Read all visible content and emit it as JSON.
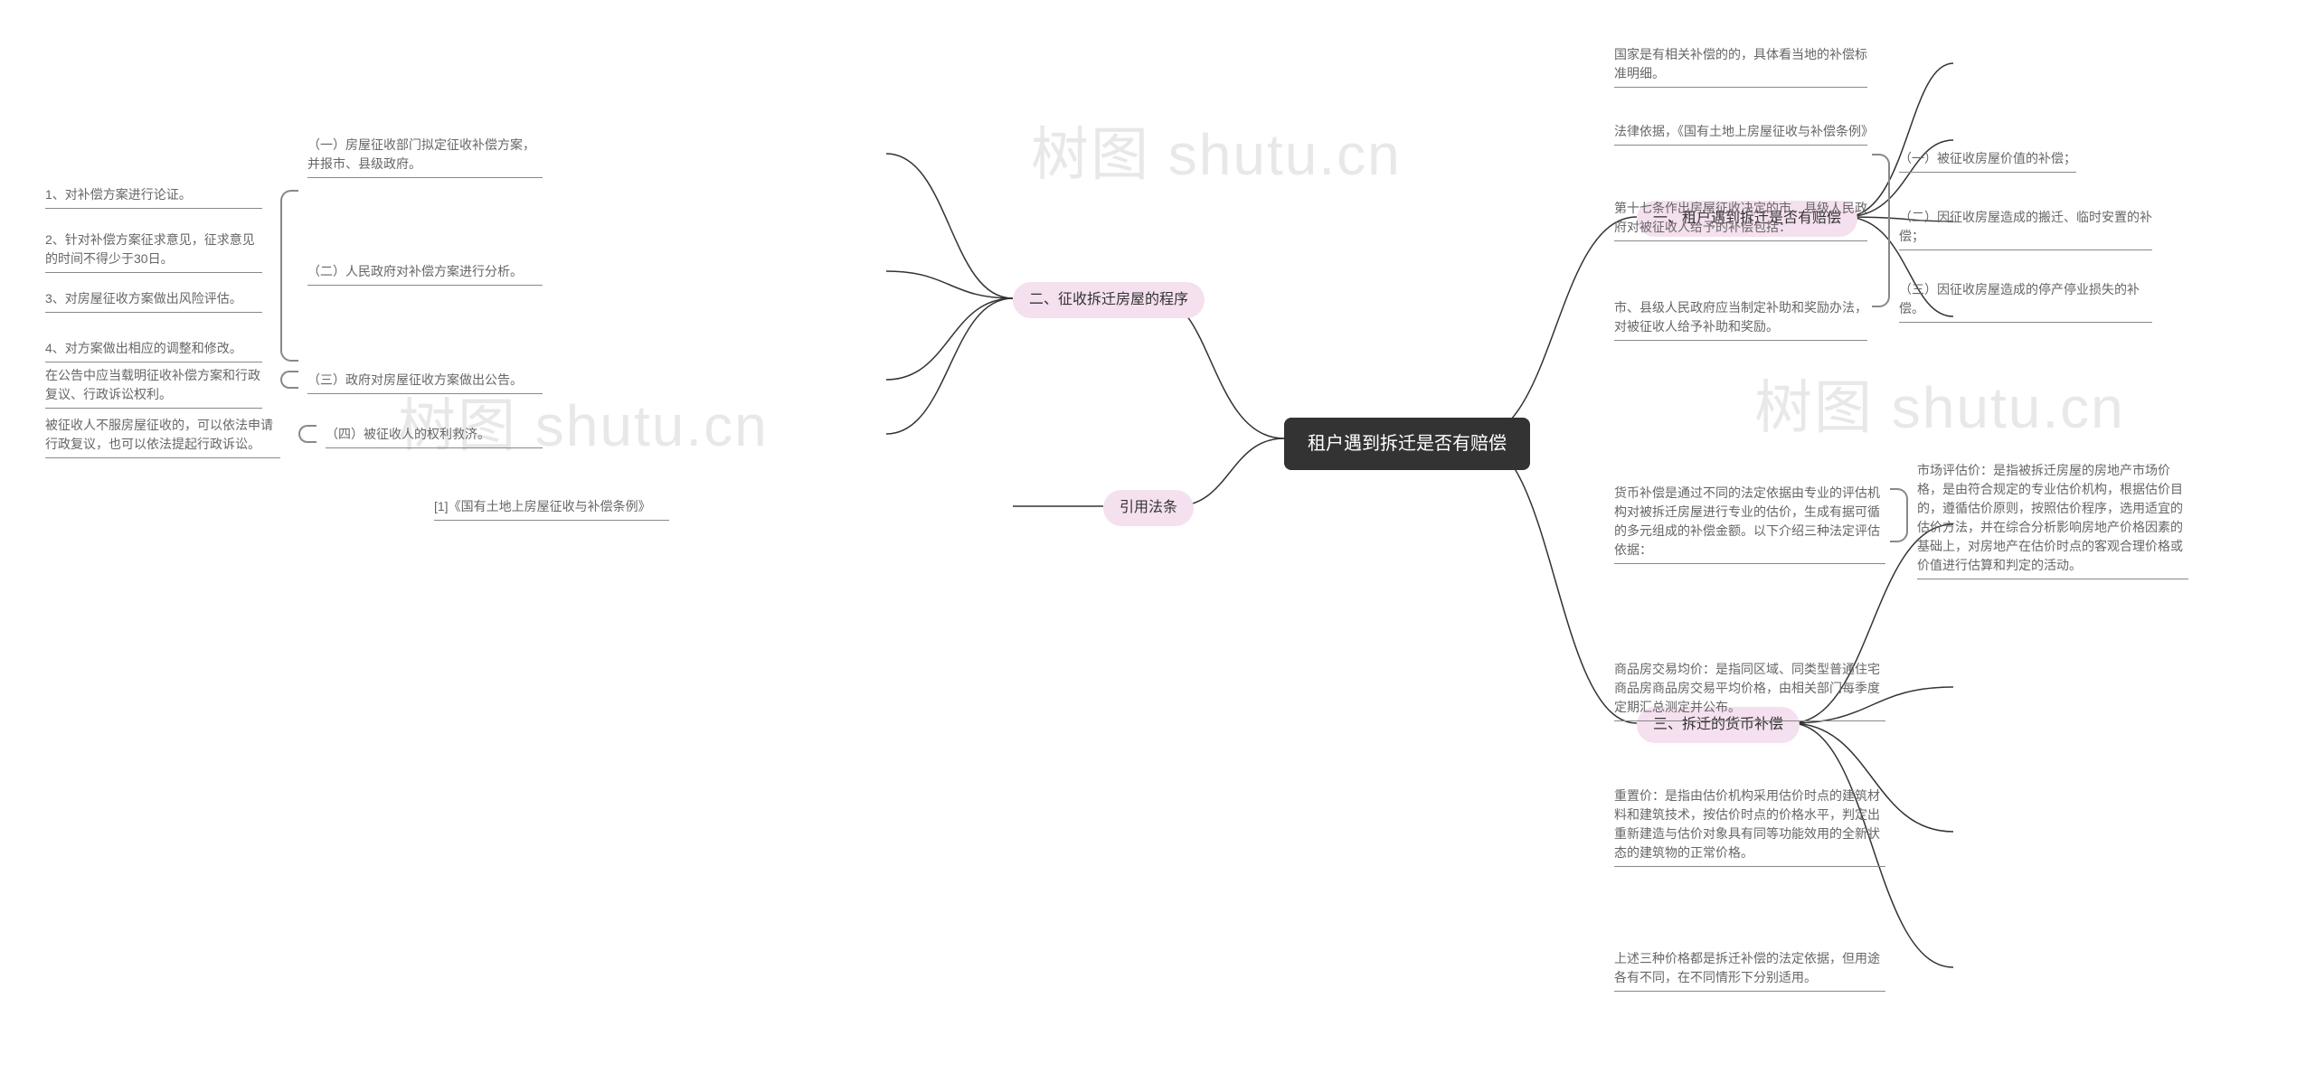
{
  "colors": {
    "root_bg": "#333333",
    "root_fg": "#ffffff",
    "branch_bg": "#f5e0ef",
    "branch_fg": "#333333",
    "leaf_fg": "#666666",
    "connector": "#333333",
    "bracket": "#888888",
    "watermark": "#e8e8e8",
    "background": "#ffffff"
  },
  "fonts": {
    "root_size": 20,
    "branch_size": 16,
    "leaf_size": 14,
    "watermark_size": 64
  },
  "watermark": "树图 shutu.cn",
  "root": "租户遇到拆迁是否有赔偿",
  "right": {
    "b1": {
      "label": "一、租户遇到拆迁是否有赔偿",
      "children": {
        "c1": "国家是有相关补偿的的，具体看当地的补偿标准明细。",
        "c2": "法律依据，《国有土地上房屋征收与补偿条例》",
        "c3": {
          "label": "第十七条作出房屋征收决定的市、县级人民政府对被征收人给予的补偿包括：",
          "children": {
            "d1": "（一）被征收房屋价值的补偿；",
            "d2": "（二）因征收房屋造成的搬迁、临时安置的补偿；",
            "d3": "（三）因征收房屋造成的停产停业损失的补偿。"
          }
        },
        "c4": "市、县级人民政府应当制定补助和奖励办法，对被征收人给予补助和奖励。"
      }
    },
    "b3": {
      "label": "三、拆迁的货币补偿",
      "children": {
        "c1": {
          "label": "货币补偿是通过不同的法定依据由专业的评估机构对被拆迁房屋进行专业的估价，生成有据可循的多元组成的补偿金额。以下介绍三种法定评估依据：",
          "children": {
            "d1": "市场评估价：是指被拆迁房屋的房地产市场价格，是由符合规定的专业估价机构，根据估价目的，遵循估价原则，按照估价程序，选用适宜的估价方法，并在综合分析影响房地产价格因素的基础上，对房地产在估价时点的客观合理价格或价值进行估算和判定的活动。"
          }
        },
        "c2": "商品房交易均价：是指同区域、同类型普通住宅商品房商品房交易平均价格，由相关部门每季度定期汇总测定并公布。",
        "c3": "重置价：是指由估价机构采用估价时点的建筑材料和建筑技术，按估价时点的价格水平，判定出重新建造与估价对象具有同等功能效用的全新状态的建筑物的正常价格。",
        "c4": "上述三种价格都是拆迁补偿的法定依据，但用途各有不同，在不同情形下分别适用。"
      }
    }
  },
  "left": {
    "b2": {
      "label": "二、征收拆迁房屋的程序",
      "children": {
        "c1": "（一）房屋征收部门拟定征收补偿方案，并报市、县级政府。",
        "c2": {
          "label": "（二）人民政府对补偿方案进行分析。",
          "children": {
            "d1": "1、对补偿方案进行论证。",
            "d2": "2、针对补偿方案征求意见，征求意见的时间不得少于30日。",
            "d3": "3、对房屋征收方案做出风险评估。",
            "d4": "4、对方案做出相应的调整和修改。"
          }
        },
        "c3": {
          "label": "（三）政府对房屋征收方案做出公告。",
          "children": {
            "d1": "在公告中应当载明征收补偿方案和行政复议、行政诉讼权利。"
          }
        },
        "c4": {
          "label": "（四）被征收人的权利救济。",
          "children": {
            "d1": "被征收人不服房屋征收的，可以依法申请行政复议，也可以依法提起行政诉讼。"
          }
        }
      }
    },
    "b4": {
      "label": "引用法条",
      "children": {
        "c1": "[1]《国有土地上房屋征收与补偿条例》"
      }
    }
  }
}
